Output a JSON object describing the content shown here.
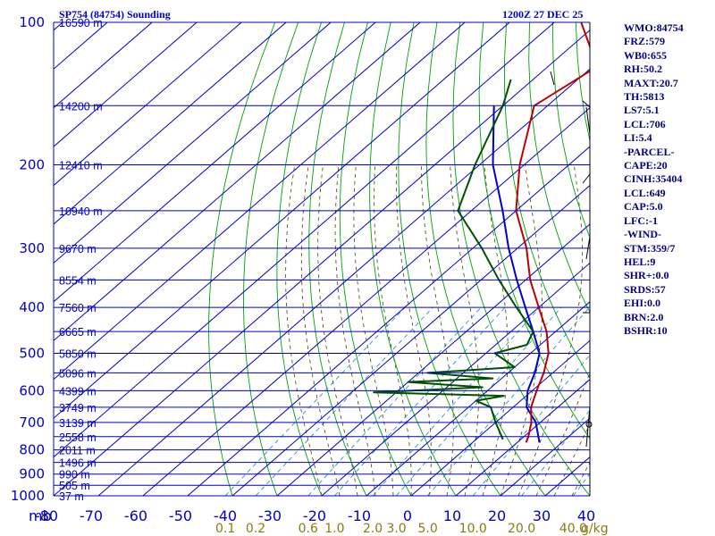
{
  "header": {
    "title": "SP754 (84754) Sounding",
    "datetime": "1200Z 27 DEC 25"
  },
  "indices": [
    "WMO:84754",
    "FRZ:579",
    "WB0:655",
    "RH:50.2",
    "MAXT:20.7",
    "TH:5813",
    "LS7:5.1",
    "LCL:706",
    "LI:5.4",
    "-PARCEL-",
    "CAPE:20",
    "CINH:35404",
    "LCL:649",
    "CAP:5.0",
    "LFC:-1",
    "-WIND-",
    "STM:359/7",
    "HEL:9",
    "SHR+:0.0",
    "SRDS:57",
    "EHI:0.0",
    "BRN:2.0",
    "BSHR:10"
  ],
  "colors": {
    "isobar": "#0000cc",
    "isotherm": "#0000cc",
    "dry_adiabat": "#00a000",
    "moist_adiabat": "#444400",
    "mixing_ratio": "#2a8fd8",
    "temperature": "#c00000",
    "dewpoint": "#005000",
    "parcel": "#0000cc",
    "wind": "#000000"
  },
  "chart_data": {
    "type": "line",
    "pressure_axis": {
      "unit_label": "mb",
      "levels": [
        100,
        200,
        300,
        400,
        500,
        600,
        700,
        800,
        900,
        1000
      ],
      "labels": [
        "100",
        "200",
        "300",
        "400",
        "500",
        "600",
        "700",
        "800",
        "900",
        "1000"
      ]
    },
    "temperature_axis": {
      "range": [
        -80,
        40
      ],
      "ticks": [
        -80,
        -70,
        -60,
        -50,
        -40,
        -30,
        -20,
        -10,
        0,
        10,
        20,
        30,
        40
      ],
      "labels": [
        "-80",
        "-70",
        "-60",
        "-50",
        "-40",
        "-30",
        "-20",
        "-10",
        "0",
        "10",
        "20",
        "30",
        "40"
      ]
    },
    "height_labels": [
      {
        "p": 100,
        "text": "16590 m"
      },
      {
        "p": 150,
        "text": "14200 m"
      },
      {
        "p": 200,
        "text": "12410 m"
      },
      {
        "p": 250,
        "text": "10940 m"
      },
      {
        "p": 300,
        "text": "9670 m"
      },
      {
        "p": 350,
        "text": "8554 m"
      },
      {
        "p": 400,
        "text": "7560 m"
      },
      {
        "p": 450,
        "text": "6665 m"
      },
      {
        "p": 500,
        "text": "5850 m"
      },
      {
        "p": 550,
        "text": "5096 m"
      },
      {
        "p": 600,
        "text": "4399 m"
      },
      {
        "p": 650,
        "text": "3749 m"
      },
      {
        "p": 700,
        "text": "3139 m"
      },
      {
        "p": 750,
        "text": "2558 m"
      },
      {
        "p": 800,
        "text": "2011 m"
      },
      {
        "p": 850,
        "text": "1496 m"
      },
      {
        "p": 900,
        "text": "990 m"
      },
      {
        "p": 950,
        "text": "505 m"
      },
      {
        "p": 1000,
        "text": "37 m"
      }
    ],
    "mixing_ratio_axis": {
      "values": [
        0.1,
        0.2,
        0.6,
        1.0,
        2.0,
        3.0,
        5.0,
        10.0,
        20.0,
        40.0
      ],
      "labels": [
        "0.1",
        "0.2",
        "0.6",
        "1.0",
        "2.0",
        "3.0",
        "5.0",
        "10.0",
        "20.0",
        "40.0"
      ],
      "unit_label": "g/kg"
    },
    "temperature": [
      {
        "p": 100,
        "t": -84
      },
      {
        "p": 124,
        "t": -69
      },
      {
        "p": 150,
        "t": -73
      },
      {
        "p": 200,
        "t": -61
      },
      {
        "p": 250,
        "t": -50
      },
      {
        "p": 300,
        "t": -38
      },
      {
        "p": 350,
        "t": -29
      },
      {
        "p": 400,
        "t": -20
      },
      {
        "p": 450,
        "t": -12
      },
      {
        "p": 500,
        "t": -6
      },
      {
        "p": 550,
        "t": -2
      },
      {
        "p": 600,
        "t": 1
      },
      {
        "p": 650,
        "t": 4
      },
      {
        "p": 700,
        "t": 8
      },
      {
        "p": 750,
        "t": 11
      },
      {
        "p": 772,
        "t": 12
      }
    ],
    "dewpoint": [
      {
        "p": 132,
        "t": -85
      },
      {
        "p": 150,
        "t": -80
      },
      {
        "p": 200,
        "t": -71
      },
      {
        "p": 250,
        "t": -63
      },
      {
        "p": 300,
        "t": -48
      },
      {
        "p": 350,
        "t": -36
      },
      {
        "p": 400,
        "t": -25
      },
      {
        "p": 450,
        "t": -15
      },
      {
        "p": 480,
        "t": -13
      },
      {
        "p": 500,
        "t": -18
      },
      {
        "p": 535,
        "t": -10
      },
      {
        "p": 550,
        "t": -28
      },
      {
        "p": 565,
        "t": -12
      },
      {
        "p": 575,
        "t": -30
      },
      {
        "p": 590,
        "t": -12
      },
      {
        "p": 605,
        "t": -35
      },
      {
        "p": 615,
        "t": -5
      },
      {
        "p": 630,
        "t": -10
      },
      {
        "p": 650,
        "t": -5
      },
      {
        "p": 700,
        "t": 0
      },
      {
        "p": 760,
        "t": 6
      }
    ],
    "parcel": [
      {
        "p": 150,
        "t": -82
      },
      {
        "p": 200,
        "t": -67
      },
      {
        "p": 250,
        "t": -53
      },
      {
        "p": 300,
        "t": -42
      },
      {
        "p": 350,
        "t": -32
      },
      {
        "p": 400,
        "t": -23
      },
      {
        "p": 450,
        "t": -15
      },
      {
        "p": 500,
        "t": -8
      },
      {
        "p": 550,
        "t": -4
      },
      {
        "p": 600,
        "t": -1
      },
      {
        "p": 650,
        "t": 3
      },
      {
        "p": 700,
        "t": 9
      },
      {
        "p": 772,
        "t": 15
      }
    ],
    "grid": true
  }
}
